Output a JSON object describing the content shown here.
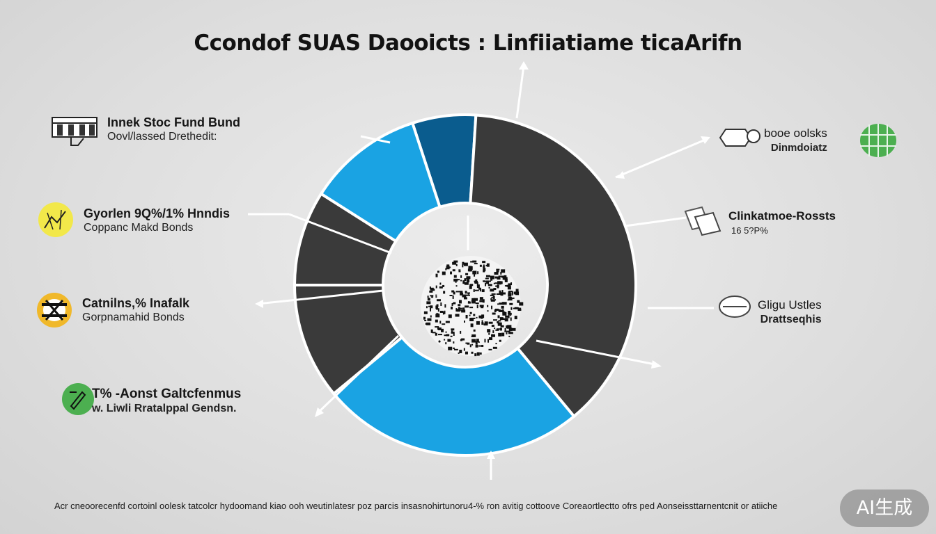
{
  "title": "Ccondof SUAS Daooicts : Linfiiatiame ticaArifn",
  "chart_data": {
    "type": "pie",
    "title": "Ccondof SUAS Daooicts : Linfiiatiame ticaArifn",
    "slices": [
      {
        "label": "Dark blue segment",
        "value": 6,
        "color": "#0a5c8e"
      },
      {
        "label": "Dark gray segment (top right)",
        "value": 38,
        "color": "#3a3a3a"
      },
      {
        "label": "Blue segment (bottom)",
        "value": 25,
        "color": "#1aa3e3"
      },
      {
        "label": "Dark gray segment (bottom left)",
        "value": 11,
        "color": "#3a3a3a"
      },
      {
        "label": "Dark gray segment (left)",
        "value": 9,
        "color": "#3a3a3a"
      },
      {
        "label": "Blue segment (left)",
        "value": 11,
        "color": "#1aa3e3"
      }
    ],
    "legend": [
      {
        "line1": "Innek Stoc Fund Bund",
        "line2": "Oovl/lassed Drethedit:",
        "icon": "building-icon",
        "side": "left"
      },
      {
        "line1": "Gyorlen 9Q%/1% Hnndis",
        "line2": "Coppanc Makd Bonds",
        "icon": "chart-coin-icon",
        "side": "left"
      },
      {
        "line1": "Catnilns,% Inafalk",
        "line2": "Gorpnamahid Bonds",
        "icon": "gauge-icon",
        "side": "left"
      },
      {
        "line1": "T% -Aonst Galtcfenmus",
        "line2": "w. Liwli Rratalppal Gendsn.",
        "icon": "pen-icon",
        "side": "left"
      },
      {
        "line1": "booe oolsks",
        "line2": "Dinmdoiatz",
        "icon": "globe-icon",
        "side": "right"
      },
      {
        "line1": "Clinkatmoe-Rossts",
        "line2": "16 5?P%",
        "icon": "document-icon",
        "side": "right"
      },
      {
        "line1": "Gligu Ustles",
        "line2": "Drattseqhis",
        "icon": "circle-icon",
        "side": "right"
      }
    ]
  },
  "footer": "Acr cneoorecenfd cortoinl oolesk tatcolcr hydoomand kiao ooh weutinlatesr poz parcis insasnohirtunoru4-% ron avitig cottoove Coreaortlectto ofrs ped Aonseissttarnentcnit or atiiche",
  "watermark": "AI生成",
  "colors": {
    "dark_blue": "#0a5c8e",
    "blue": "#1aa3e3",
    "dark_gray": "#3a3a3a",
    "yellow": "#f2e84a",
    "green": "#4caf50"
  }
}
